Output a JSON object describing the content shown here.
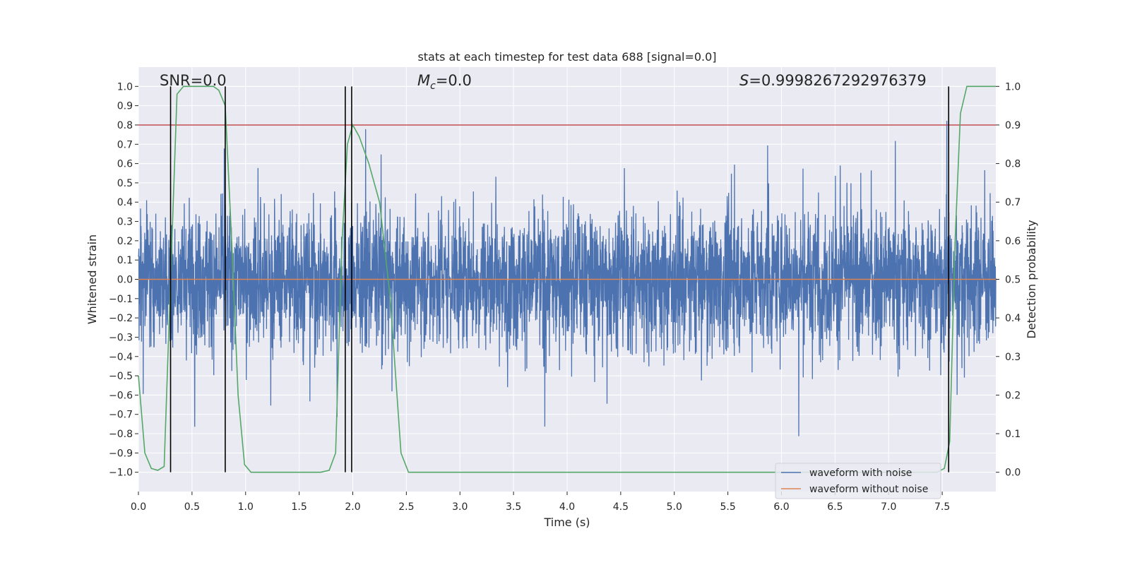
{
  "chart_data": {
    "type": "line",
    "title": "stats at each timestep for test data 688 [signal=0.0]",
    "xlabel": "Time (s)",
    "ylabel": "Whitened strain",
    "y2label": "Detection probability",
    "xlim": [
      0.0,
      8.0
    ],
    "ylim": [
      -1.1,
      1.1
    ],
    "y2lim": [
      -0.05,
      1.05
    ],
    "xticks": [
      "0.0",
      "0.5",
      "1.0",
      "1.5",
      "2.0",
      "2.5",
      "3.0",
      "3.5",
      "4.0",
      "4.5",
      "5.0",
      "5.5",
      "6.0",
      "6.5",
      "7.0",
      "7.5"
    ],
    "yticks": [
      "1.0",
      "0.9",
      "0.8",
      "0.7",
      "0.6",
      "0.5",
      "0.4",
      "0.3",
      "0.2",
      "0.1",
      "0.0",
      "−0.1",
      "−0.2",
      "−0.3",
      "−0.4",
      "−0.5",
      "−0.6",
      "−0.7",
      "−0.8",
      "−0.9",
      "−1.0"
    ],
    "y2ticks": [
      "1.0",
      "0.9",
      "0.8",
      "0.7",
      "0.6",
      "0.5",
      "0.4",
      "0.3",
      "0.2",
      "0.1",
      "0.0"
    ],
    "annotations": {
      "snr": "SNR=0.0",
      "mc_symbol": "M",
      "mc_sub": "c",
      "mc_value": "=0.0",
      "s_symbol": "S",
      "s_value": "=0.9998267292976379"
    },
    "threshold": {
      "value": 0.9,
      "axis": "right",
      "color": "#c44e52"
    },
    "vlines": [
      0.3,
      0.81,
      1.93,
      1.99,
      7.56
    ],
    "series": [
      {
        "name": "waveform with noise",
        "axis": "left",
        "color": "#4c72b0",
        "envelope": {
          "typical_abs": 0.33,
          "peak_abs_max": 0.98,
          "samples": 4096
        }
      },
      {
        "name": "waveform without noise",
        "axis": "left",
        "color": "#dd8452",
        "x": [
          0.0,
          8.0
        ],
        "y": [
          0.0,
          0.0
        ]
      },
      {
        "name": "Detection probability",
        "axis": "right",
        "color": "#55a868",
        "x": [
          0.0,
          0.06,
          0.12,
          0.18,
          0.24,
          0.3,
          0.36,
          0.42,
          0.5,
          0.6,
          0.7,
          0.75,
          0.81,
          0.87,
          0.93,
          0.99,
          1.05,
          1.1,
          1.2,
          1.5,
          1.7,
          1.78,
          1.84,
          1.9,
          1.95,
          2.0,
          2.06,
          2.15,
          2.25,
          2.35,
          2.45,
          2.52,
          2.6,
          3.0,
          4.0,
          5.0,
          6.0,
          7.0,
          7.45,
          7.52,
          7.57,
          7.62,
          7.67,
          7.73,
          7.8,
          8.0
        ],
        "y": [
          0.25,
          0.05,
          0.01,
          0.005,
          0.015,
          0.5,
          0.98,
          1.0,
          1.0,
          1.0,
          1.0,
          0.99,
          0.95,
          0.6,
          0.2,
          0.02,
          0.0,
          0.0,
          0.0,
          0.0,
          0.0,
          0.005,
          0.05,
          0.6,
          0.85,
          0.9,
          0.87,
          0.8,
          0.7,
          0.45,
          0.05,
          0.0,
          0.0,
          0.0,
          0.0,
          0.0,
          0.0,
          0.0,
          0.0,
          0.01,
          0.08,
          0.6,
          0.93,
          1.0,
          1.0,
          1.0
        ]
      }
    ],
    "legend": {
      "location": "lower-right",
      "entries": [
        {
          "label": "waveform with noise",
          "color": "#4c72b0"
        },
        {
          "label": "waveform without noise",
          "color": "#dd8452"
        }
      ]
    },
    "grid": true,
    "style": {
      "background": "#eaeaf2",
      "grid_color": "#ffffff",
      "vline_color": "#000000"
    }
  }
}
